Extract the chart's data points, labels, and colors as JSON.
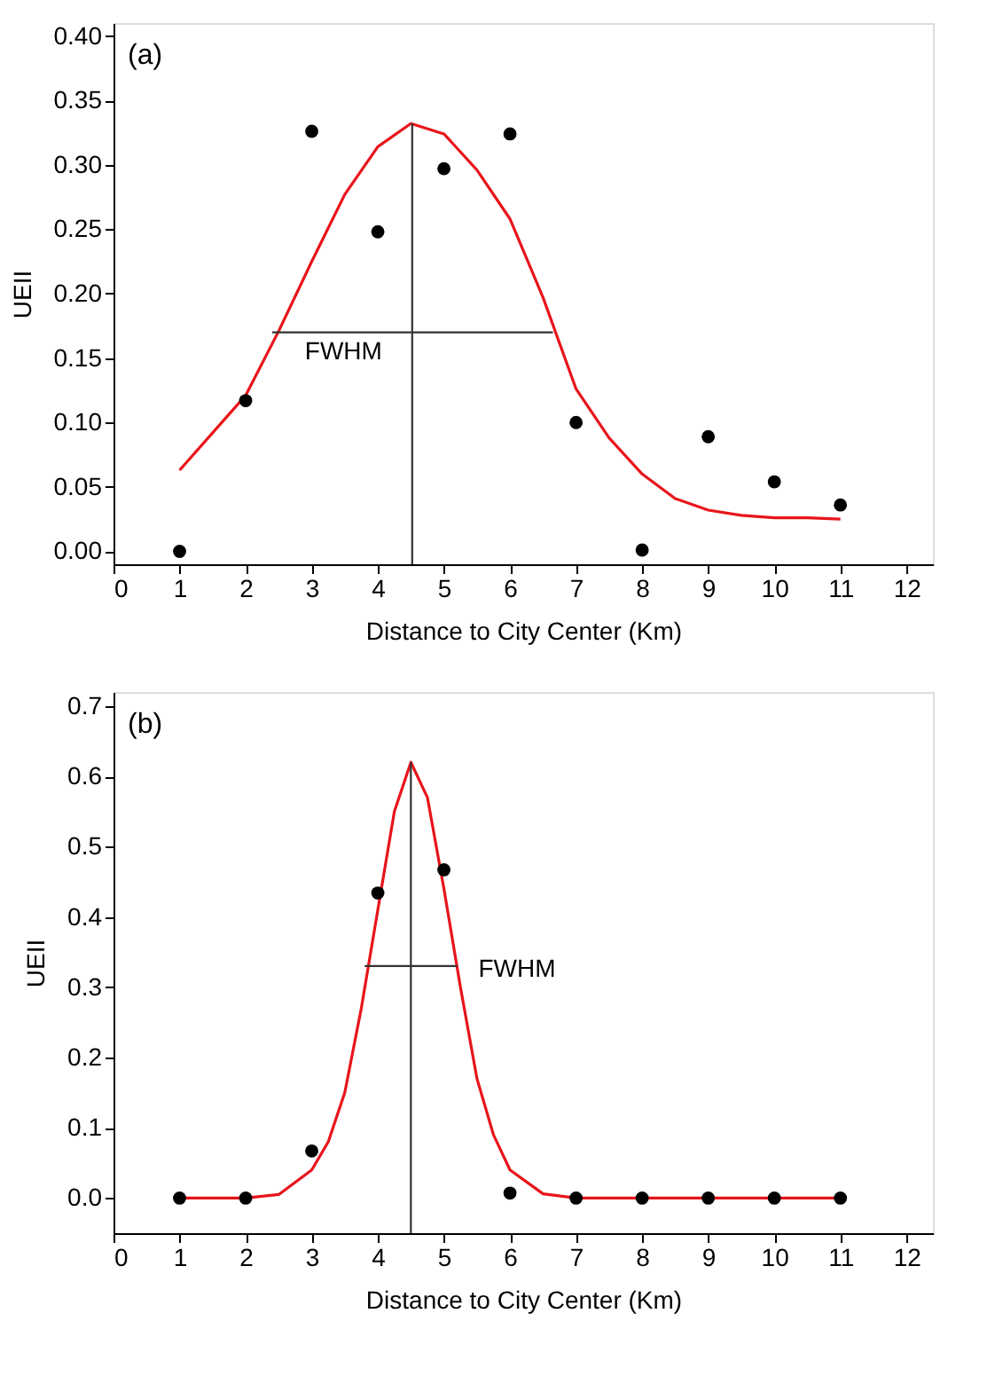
{
  "chart_data": [
    {
      "type": "scatter",
      "xlabel": "Distance to City Center (Km)",
      "ylabel": "UEII",
      "annotations": [
        "(a)"
      ],
      "xlim": [
        0,
        12.4
      ],
      "xticks": [
        0,
        1,
        2,
        3,
        4,
        5,
        6,
        7,
        8,
        9,
        10,
        11,
        12
      ],
      "ylim": [
        -0.01,
        0.41
      ],
      "yticks": [
        {
          "value": 0,
          "label": "0.00"
        },
        {
          "value": 0.05,
          "label": "0.05"
        },
        {
          "value": 0.1,
          "label": "0.10"
        },
        {
          "value": 0.15,
          "label": "0.15"
        },
        {
          "value": 0.2,
          "label": "0.20"
        },
        {
          "value": 0.25,
          "label": "0.25"
        },
        {
          "value": 0.3,
          "label": "0.30"
        },
        {
          "value": 0.35,
          "label": "0.35"
        },
        {
          "value": 0.4,
          "label": "0.40"
        }
      ],
      "grid": false,
      "series": [
        {
          "type": "line",
          "color": "#e8141b",
          "marker": "none",
          "x": [
            1,
            2,
            2.5,
            3,
            3.5,
            4,
            4.5,
            5,
            5.5,
            6,
            6.5,
            7,
            7.5,
            8,
            8.5,
            9,
            9.5,
            10,
            10.5,
            11
          ],
          "values": [
            0.063,
            0.121,
            0.171,
            0.225,
            0.277,
            0.314,
            0.332,
            0.324,
            0.296,
            0.258,
            0.197,
            0.126,
            0.088,
            0.06,
            0.041,
            0.032,
            0.028,
            0.026,
            0.026,
            0.025
          ]
        },
        {
          "type": "line",
          "name": "FWHM",
          "color": "#333333",
          "marker": "none",
          "x": [
            2.4,
            6.65
          ],
          "values": [
            0.17,
            0.17
          ]
        },
        {
          "type": "line",
          "color": "#333333",
          "marker": "none",
          "x": [
            4.52,
            4.52
          ],
          "values": [
            -0.01,
            0.332
          ]
        },
        {
          "color": "#000000",
          "marker": "circle",
          "x": [
            1,
            2,
            3,
            4,
            5,
            6,
            7,
            8,
            9,
            10,
            11
          ],
          "values": [
            0.0,
            0.117,
            0.326,
            0.248,
            0.297,
            0.324,
            0.1,
            0.001,
            0.089,
            0.054,
            0.036
          ]
        }
      ]
    },
    {
      "type": "scatter",
      "xlabel": "Distance to City Center (Km)",
      "ylabel": "UEII",
      "annotations": [
        "(b)"
      ],
      "xlim": [
        0,
        12.4
      ],
      "xticks": [
        0,
        1,
        2,
        3,
        4,
        5,
        6,
        7,
        8,
        9,
        10,
        11,
        12
      ],
      "ylim": [
        -0.05,
        0.72
      ],
      "yticks": [
        {
          "value": 0,
          "label": "0.0"
        },
        {
          "value": 0.1,
          "label": "0.1"
        },
        {
          "value": 0.2,
          "label": "0.2"
        },
        {
          "value": 0.3,
          "label": "0.3"
        },
        {
          "value": 0.4,
          "label": "0.4"
        },
        {
          "value": 0.5,
          "label": "0.5"
        },
        {
          "value": 0.6,
          "label": "0.6"
        },
        {
          "value": 0.7,
          "label": "0.7"
        }
      ],
      "grid": false,
      "series": [
        {
          "type": "line",
          "color": "#e8141b",
          "marker": "none",
          "x": [
            1,
            2,
            2.5,
            3,
            3.25,
            3.5,
            3.75,
            4,
            4.25,
            4.5,
            4.75,
            5,
            5.25,
            5.5,
            5.75,
            6,
            6.5,
            7,
            8,
            9,
            10,
            11
          ],
          "values": [
            0,
            0,
            0.005,
            0.04,
            0.08,
            0.15,
            0.27,
            0.41,
            0.55,
            0.62,
            0.57,
            0.44,
            0.3,
            0.17,
            0.09,
            0.04,
            0.006,
            0,
            0,
            0,
            0,
            0
          ]
        },
        {
          "type": "line",
          "name": "FWHM",
          "color": "#333333",
          "marker": "none",
          "x": [
            3.8,
            5.2
          ],
          "values": [
            0.33,
            0.33
          ]
        },
        {
          "type": "line",
          "color": "#333333",
          "marker": "none",
          "x": [
            4.5,
            4.5
          ],
          "values": [
            -0.05,
            0.62
          ]
        },
        {
          "color": "#000000",
          "marker": "circle",
          "x": [
            1,
            2,
            3,
            4,
            5,
            6,
            7,
            8,
            9,
            10,
            11
          ],
          "values": [
            0,
            0,
            0.067,
            0.434,
            0.467,
            0.007,
            0,
            0,
            0,
            0,
            0
          ]
        }
      ]
    }
  ]
}
